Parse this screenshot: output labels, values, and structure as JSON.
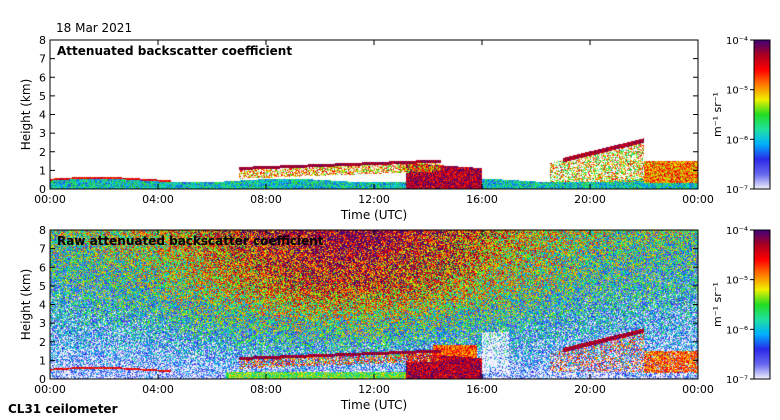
{
  "date_label": "18 Mar 2021",
  "instrument_label": "CL31 ceilometer",
  "chart_data": [
    {
      "type": "heatmap",
      "title": "Attenuated backscatter coefficient",
      "xlabel": "Time (UTC)",
      "ylabel": "Height (km)",
      "xlim": [
        0,
        24
      ],
      "ylim": [
        0,
        8
      ],
      "x_ticks": [
        0,
        4,
        8,
        12,
        16,
        20,
        24
      ],
      "x_tick_labels": [
        "00:00",
        "04:00",
        "08:00",
        "12:00",
        "16:00",
        "20:00",
        "00:00"
      ],
      "y_ticks": [
        0,
        1,
        2,
        3,
        4,
        5,
        6,
        7,
        8
      ],
      "y_tick_labels": [
        "0",
        "1",
        "2",
        "3",
        "4",
        "5",
        "6",
        "7",
        "8"
      ],
      "colorbar": {
        "scale": "log",
        "range": [
          1e-07,
          0.0001
        ],
        "tick_values": [
          -7,
          -6,
          -5,
          -4
        ],
        "tick_labels": [
          "10⁻⁷",
          "10⁻⁶",
          "10⁻⁵",
          "10⁻⁴"
        ],
        "label": "m⁻¹ sr⁻¹",
        "colors": [
          "#f2f2fb",
          "#6666ee",
          "#2a2ae8",
          "#00b0ff",
          "#20e0a0",
          "#22dd22",
          "#f0f000",
          "#ff7a00",
          "#ff0000",
          "#aa0022",
          "#40007a"
        ]
      },
      "features": {
        "boundary_layer_km": 0.5,
        "cloud_layer": {
          "start_h": 7.0,
          "end_h": 14.5,
          "base_km_start": 1.1,
          "base_km_end": 1.5
        },
        "elevated_layer": {
          "start_h": 19.0,
          "end_h": 22.0,
          "height_km": 2.6
        }
      }
    },
    {
      "type": "heatmap",
      "title": "Raw attenuated backscatter coefficient",
      "xlabel": "Time (UTC)",
      "ylabel": "Height (km)",
      "xlim": [
        0,
        24
      ],
      "ylim": [
        0,
        8
      ],
      "x_ticks": [
        0,
        4,
        8,
        12,
        16,
        20,
        24
      ],
      "x_tick_labels": [
        "00:00",
        "04:00",
        "08:00",
        "12:00",
        "16:00",
        "20:00",
        "00:00"
      ],
      "y_ticks": [
        0,
        1,
        2,
        3,
        4,
        5,
        6,
        7,
        8
      ],
      "y_tick_labels": [
        "0",
        "1",
        "2",
        "3",
        "4",
        "5",
        "6",
        "7",
        "8"
      ],
      "colorbar": {
        "scale": "log",
        "range": [
          1e-07,
          0.0001
        ],
        "tick_values": [
          -7,
          -6,
          -5,
          -4
        ],
        "tick_labels": [
          "10⁻⁷",
          "10⁻⁶",
          "10⁻⁵",
          "10⁻⁴"
        ],
        "label": "m⁻¹ sr⁻¹",
        "colors": [
          "#f2f2fb",
          "#6666ee",
          "#2a2ae8",
          "#00b0ff",
          "#20e0a0",
          "#22dd22",
          "#f0f000",
          "#ff7a00",
          "#ff0000",
          "#aa0022",
          "#40007a"
        ]
      },
      "features": {
        "noise_peak_h": 11.0,
        "clear_gap": {
          "start_h": 16.0,
          "end_h": 17.0
        }
      }
    }
  ]
}
